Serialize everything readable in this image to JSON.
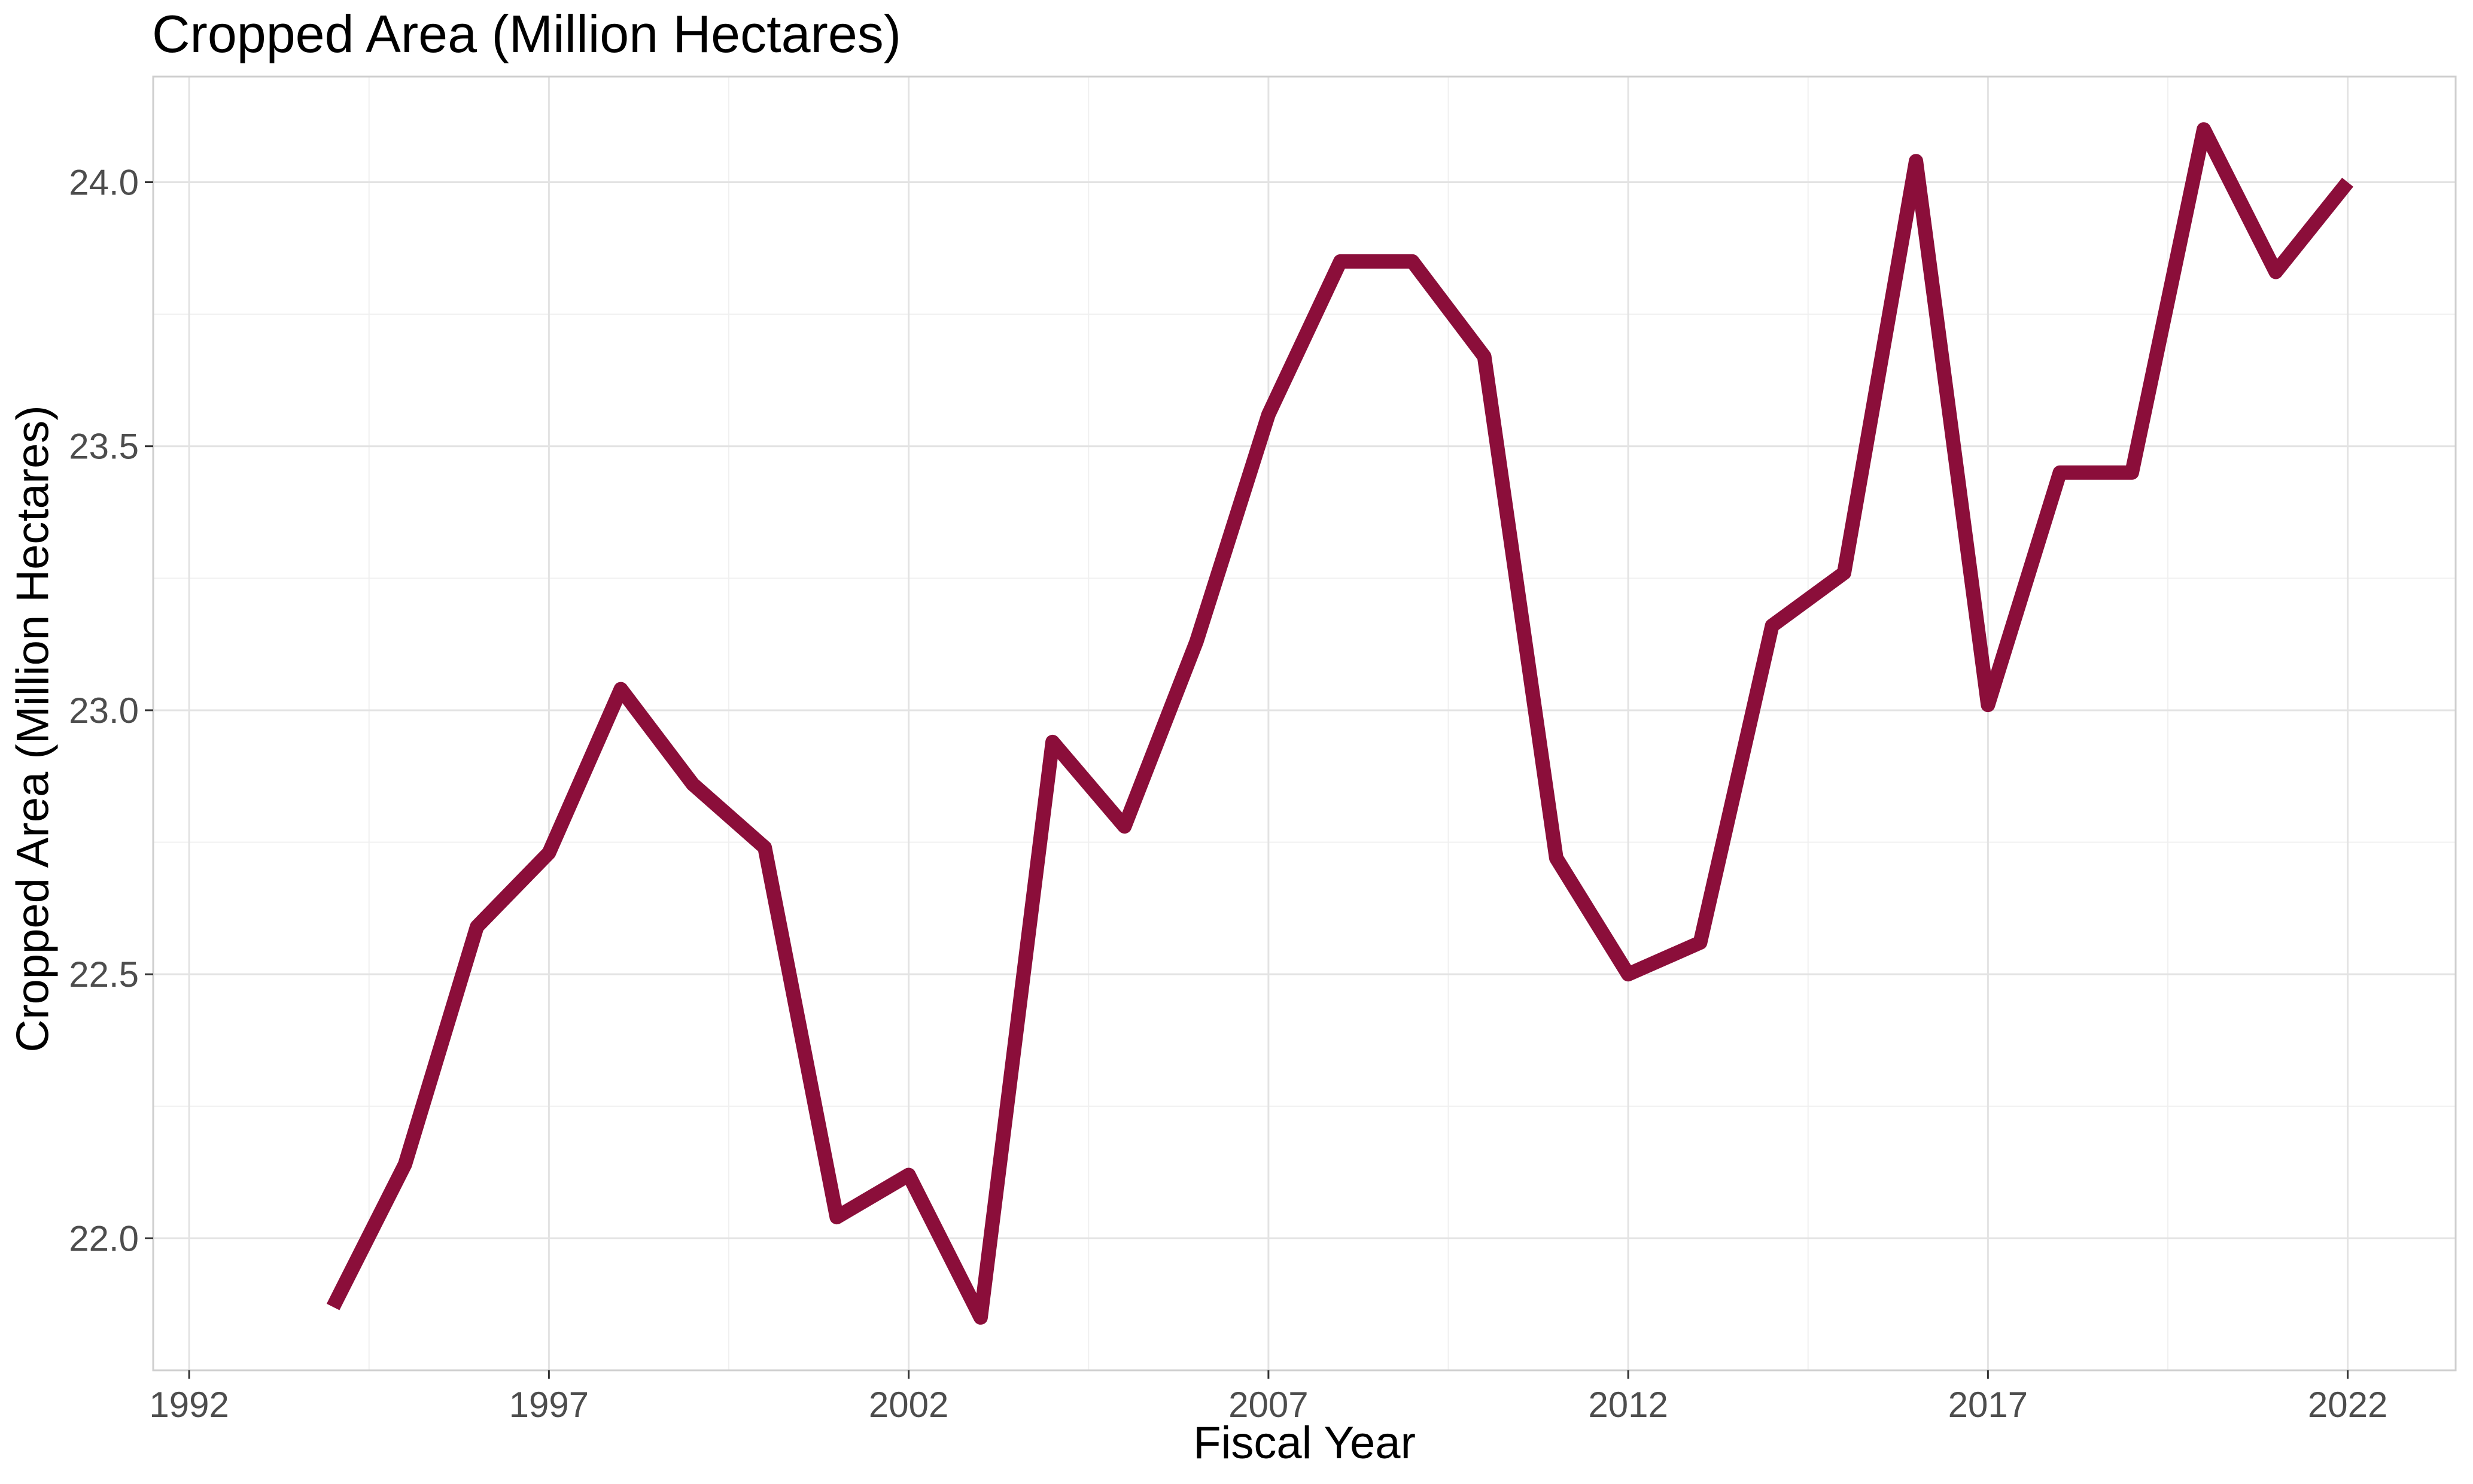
{
  "chart_data": {
    "type": "line",
    "title": "Cropped Area (Million Hectares)",
    "xlabel": "Fiscal Year",
    "ylabel": "Cropped Area (Million Hectares)",
    "xlim": [
      1991.5,
      2023.5
    ],
    "ylim": [
      21.75,
      24.2
    ],
    "x_ticks": [
      1992,
      1997,
      2002,
      2007,
      2012,
      2017,
      2022
    ],
    "x_tick_labels": [
      "1992",
      "1997",
      "2002",
      "2007",
      "2012",
      "2017",
      "2022"
    ],
    "y_ticks": [
      22.0,
      22.5,
      23.0,
      23.5,
      24.0
    ],
    "y_tick_labels": [
      "22.0",
      "22.5",
      "23.0",
      "23.5",
      "24.0"
    ],
    "grid": true,
    "legend": "none",
    "series": [
      {
        "color": "#8B0E3A",
        "x": [
          1994,
          1995,
          1996,
          1997,
          1998,
          1999,
          2000,
          2001,
          2002,
          2003,
          2004,
          2005,
          2006,
          2007,
          2008,
          2009,
          2010,
          2011,
          2012,
          2013,
          2014,
          2015,
          2016,
          2017,
          2018,
          2019,
          2020,
          2021,
          2022
        ],
        "values": [
          21.87,
          22.14,
          22.59,
          22.73,
          23.04,
          22.86,
          22.74,
          22.04,
          22.12,
          21.85,
          22.94,
          22.78,
          23.13,
          23.56,
          23.85,
          23.85,
          23.67,
          22.72,
          22.5,
          22.56,
          23.16,
          23.26,
          24.04,
          23.01,
          23.45,
          23.45,
          24.1,
          23.83,
          24.0
        ]
      }
    ]
  }
}
